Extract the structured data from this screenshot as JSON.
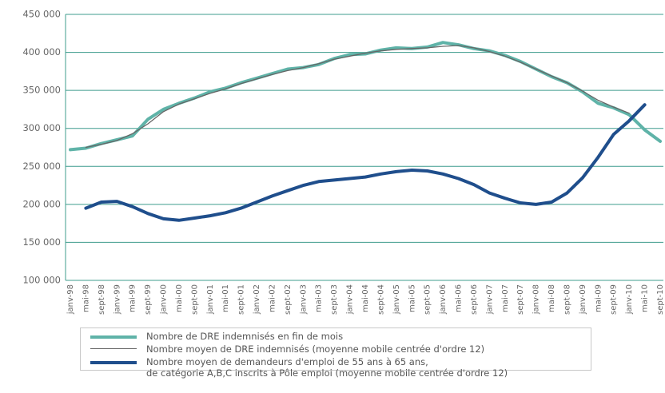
{
  "chart_data": {
    "type": "line",
    "categories": [
      "janv-98",
      "mai-98",
      "sept-98",
      "janv-99",
      "mai-99",
      "sept-99",
      "janv-00",
      "mai-00",
      "sept-00",
      "janv-01",
      "mai-01",
      "sept-01",
      "janv-02",
      "mai-02",
      "sept-02",
      "janv-03",
      "mai-03",
      "sept-03",
      "janv-04",
      "mai-04",
      "sept-04",
      "janv-05",
      "mai-05",
      "sept-05",
      "janv-06",
      "mai-06",
      "sept-06",
      "janv-07",
      "mai-07",
      "sept-07",
      "janv-08",
      "mai-08",
      "sept-08",
      "janv-09",
      "mai-09",
      "sept-09",
      "janv-10",
      "mai-10",
      "sept-10"
    ],
    "series": [
      {
        "name": "Nombre de DRE indemnisés en fin de mois",
        "color": "#5fb3a8",
        "width": 4,
        "values": [
          272000,
          274000,
          280000,
          285000,
          290000,
          312000,
          325000,
          333000,
          340000,
          348000,
          353000,
          360000,
          366000,
          372000,
          378000,
          380000,
          384000,
          392000,
          397000,
          398000,
          403000,
          406000,
          405000,
          407000,
          413000,
          410000,
          405000,
          402000,
          396000,
          388000,
          378000,
          368000,
          360000,
          348000,
          333000,
          327000,
          318000,
          298000,
          283000
        ]
      },
      {
        "name": "Nombre moyen de DRE indemnisés (moyenne mobile centrée d'ordre 12)",
        "color": "#666666",
        "width": 1.3,
        "values": [
          null,
          275000,
          279000,
          284000,
          293000,
          306000,
          322000,
          332000,
          339000,
          346000,
          352000,
          359000,
          365000,
          371000,
          376000,
          380000,
          385000,
          391000,
          395000,
          399000,
          402000,
          404000,
          405000,
          406000,
          408000,
          409000,
          406000,
          401000,
          395000,
          387000,
          378000,
          369000,
          360000,
          349000,
          337000,
          328000,
          320000,
          null,
          null
        ]
      },
      {
        "name": "Nombre moyen de demandeurs d'emploi de 55 ans à 65 ans,\nde catégorie A,B,C inscrits à Pôle emploi (moyenne mobile centrée d'ordre 12)",
        "color": "#1f4e8c",
        "width": 4,
        "values": [
          null,
          195000,
          203000,
          204000,
          197000,
          188000,
          181000,
          179000,
          182000,
          185000,
          189000,
          195000,
          203000,
          211000,
          218000,
          225000,
          230000,
          232000,
          234000,
          236000,
          240000,
          243000,
          245000,
          244000,
          240000,
          234000,
          226000,
          215000,
          208000,
          202000,
          200000,
          203000,
          215000,
          235000,
          262000,
          292000,
          310000,
          331000,
          null
        ]
      }
    ],
    "ylim": [
      100000,
      450000
    ],
    "yticks": [
      {
        "value": 100000,
        "label": "100 000"
      },
      {
        "value": 150000,
        "label": "150 000"
      },
      {
        "value": 200000,
        "label": "200 000"
      },
      {
        "value": 250000,
        "label": "250 000"
      },
      {
        "value": 300000,
        "label": "300 000"
      },
      {
        "value": 350000,
        "label": "350 000"
      },
      {
        "value": 400000,
        "label": "400 000"
      },
      {
        "value": 450000,
        "label": "450 000"
      }
    ],
    "grid": true
  }
}
